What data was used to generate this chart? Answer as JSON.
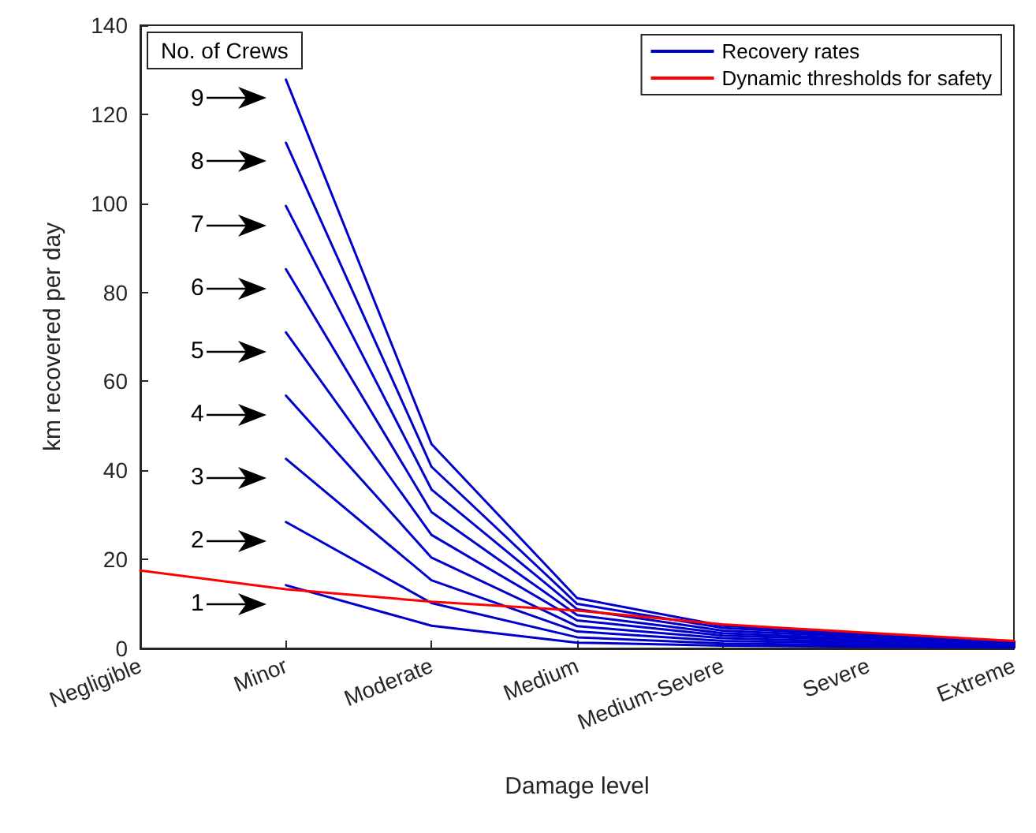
{
  "chart_data": {
    "type": "line",
    "xlabel": "Damage level",
    "ylabel": "km recovered per day",
    "categories": [
      "Negligible",
      "Minor",
      "Moderate",
      "Medium",
      "Medium-Severe",
      "Severe",
      "Extreme"
    ],
    "ylim": [
      0,
      140
    ],
    "yticks": [
      0,
      20,
      40,
      60,
      80,
      100,
      120,
      140
    ],
    "legend": "top right",
    "marker": "none",
    "line_style": "solid",
    "series": [
      {
        "name": "Recovery rates",
        "color": "#0000cc",
        "values": [
          null,
          14.2,
          5.1,
          1.3,
          0.6,
          0.4,
          0.2
        ]
      },
      {
        "color": "#0000cc",
        "values": [
          null,
          28.4,
          10.2,
          2.5,
          1.1,
          0.7,
          0.3
        ]
      },
      {
        "color": "#0000cc",
        "values": [
          null,
          42.6,
          15.3,
          3.8,
          1.7,
          1.1,
          0.5
        ]
      },
      {
        "color": "#0000cc",
        "values": [
          null,
          56.8,
          20.4,
          5.0,
          2.3,
          1.4,
          0.6
        ]
      },
      {
        "color": "#0000cc",
        "values": [
          null,
          71.0,
          25.5,
          6.3,
          2.9,
          1.8,
          0.8
        ]
      },
      {
        "color": "#0000cc",
        "values": [
          null,
          85.2,
          30.6,
          7.5,
          3.4,
          2.1,
          1.0
        ]
      },
      {
        "color": "#0000cc",
        "values": [
          null,
          99.4,
          35.7,
          8.8,
          4.0,
          2.5,
          1.1
        ]
      },
      {
        "color": "#0000cc",
        "values": [
          null,
          113.6,
          40.8,
          10.0,
          4.6,
          2.8,
          1.3
        ]
      },
      {
        "color": "#0000cc",
        "values": [
          null,
          127.8,
          45.9,
          11.3,
          5.1,
          3.2,
          1.4
        ]
      },
      {
        "name": "Dynamic thresholds for safety",
        "color": "#ff0000",
        "values": [
          17.5,
          13.3,
          10.5,
          8.5,
          5.4,
          3.5,
          1.7
        ]
      }
    ],
    "annotations": [
      "No. of Crews",
      "1",
      "2",
      "3",
      "4",
      "5",
      "6",
      "7",
      "8",
      "9"
    ]
  }
}
